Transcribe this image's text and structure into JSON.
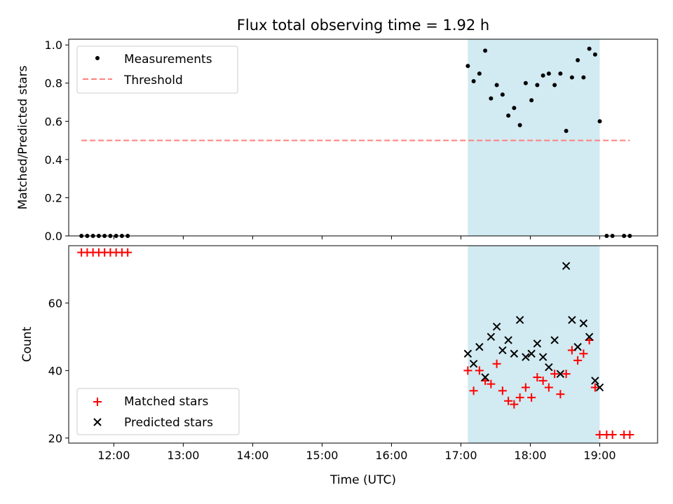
{
  "chart_data": [
    {
      "type": "scatter",
      "title": "Flux total observing time = 1.92 h",
      "xlabel": "",
      "ylabel": "Matched/Predicted stars",
      "xlim": [
        "11:21",
        "19:50"
      ],
      "ylim": [
        0,
        1.03
      ],
      "yticks": [
        0.0,
        0.2,
        0.4,
        0.6,
        0.8,
        1.0
      ],
      "ytick_labels": [
        "0.0",
        "0.2",
        "0.4",
        "0.6",
        "0.8",
        "1.0"
      ],
      "shaded_interval": [
        "17:06",
        "19:00"
      ],
      "shade_color": "#add8e6",
      "legend_position": "upper left",
      "series": [
        {
          "name": "Measurements",
          "marker": "dot",
          "color": "#000000",
          "x": [
            "11:32",
            "11:37",
            "11:42",
            "11:47",
            "11:52",
            "11:57",
            "12:02",
            "12:07",
            "12:12",
            "17:06",
            "17:11",
            "17:16",
            "17:21",
            "17:26",
            "17:31",
            "17:36",
            "17:41",
            "17:46",
            "17:51",
            "17:56",
            "18:01",
            "18:06",
            "18:11",
            "18:16",
            "18:21",
            "18:26",
            "18:31",
            "18:36",
            "18:41",
            "18:46",
            "18:51",
            "18:56",
            "19:00",
            "19:06",
            "19:11",
            "19:21",
            "19:26"
          ],
          "values": [
            0,
            0,
            0,
            0,
            0,
            0,
            0,
            0,
            0,
            0.89,
            0.81,
            0.85,
            0.97,
            0.72,
            0.79,
            0.74,
            0.63,
            0.67,
            0.58,
            0.8,
            0.71,
            0.79,
            0.84,
            0.85,
            0.79,
            0.85,
            0.55,
            0.83,
            0.92,
            0.83,
            0.98,
            0.95,
            0.6,
            0,
            0,
            0,
            0
          ]
        },
        {
          "name": "Threshold",
          "type": "dashed-line",
          "color": "#ff7f7f",
          "x": [
            "11:32",
            "19:26"
          ],
          "values": [
            0.5,
            0.5
          ]
        }
      ]
    },
    {
      "type": "scatter",
      "title": "",
      "xlabel": "Time (UTC)",
      "ylabel": "Count",
      "xlim": [
        "11:21",
        "19:50"
      ],
      "ylim": [
        18.5,
        77
      ],
      "yticks": [
        20,
        40,
        60
      ],
      "ytick_labels": [
        "20",
        "40",
        "60"
      ],
      "xticks": [
        "12:00",
        "13:00",
        "14:00",
        "15:00",
        "16:00",
        "17:00",
        "18:00",
        "19:00"
      ],
      "xtick_labels": [
        "12:00",
        "13:00",
        "14:00",
        "15:00",
        "16:00",
        "17:00",
        "18:00",
        "19:00"
      ],
      "shaded_interval": [
        "17:06",
        "19:00"
      ],
      "shade_color": "#add8e6",
      "legend_position": "lower left",
      "series": [
        {
          "name": "Matched stars",
          "marker": "plus",
          "color": "#ff0000",
          "x": [
            "11:32",
            "11:37",
            "11:42",
            "11:47",
            "11:52",
            "11:57",
            "12:02",
            "12:07",
            "12:12",
            "17:06",
            "17:11",
            "17:16",
            "17:21",
            "17:26",
            "17:31",
            "17:36",
            "17:41",
            "17:46",
            "17:51",
            "17:56",
            "18:01",
            "18:06",
            "18:11",
            "18:16",
            "18:21",
            "18:26",
            "18:31",
            "18:36",
            "18:41",
            "18:46",
            "18:51",
            "18:56",
            "19:00",
            "19:06",
            "19:11",
            "19:21",
            "19:26"
          ],
          "values": [
            75,
            75,
            75,
            75,
            75,
            75,
            75,
            75,
            75,
            40,
            34,
            40,
            37,
            36,
            42,
            34,
            31,
            30,
            32,
            35,
            32,
            38,
            37,
            35,
            39,
            33,
            39,
            46,
            43,
            45,
            49,
            35,
            21,
            21,
            21,
            21,
            21
          ]
        },
        {
          "name": "Predicted stars",
          "marker": "x",
          "color": "#000000",
          "x": [
            "17:06",
            "17:11",
            "17:16",
            "17:21",
            "17:26",
            "17:31",
            "17:36",
            "17:41",
            "17:46",
            "17:51",
            "17:56",
            "18:01",
            "18:06",
            "18:11",
            "18:16",
            "18:21",
            "18:26",
            "18:31",
            "18:36",
            "18:41",
            "18:46",
            "18:51",
            "18:56",
            "19:00"
          ],
          "values": [
            45,
            42,
            47,
            38,
            50,
            53,
            46,
            49,
            45,
            55,
            44,
            45,
            48,
            44,
            41,
            49,
            39,
            71,
            55,
            47,
            54,
            50,
            37,
            35
          ]
        }
      ]
    }
  ]
}
